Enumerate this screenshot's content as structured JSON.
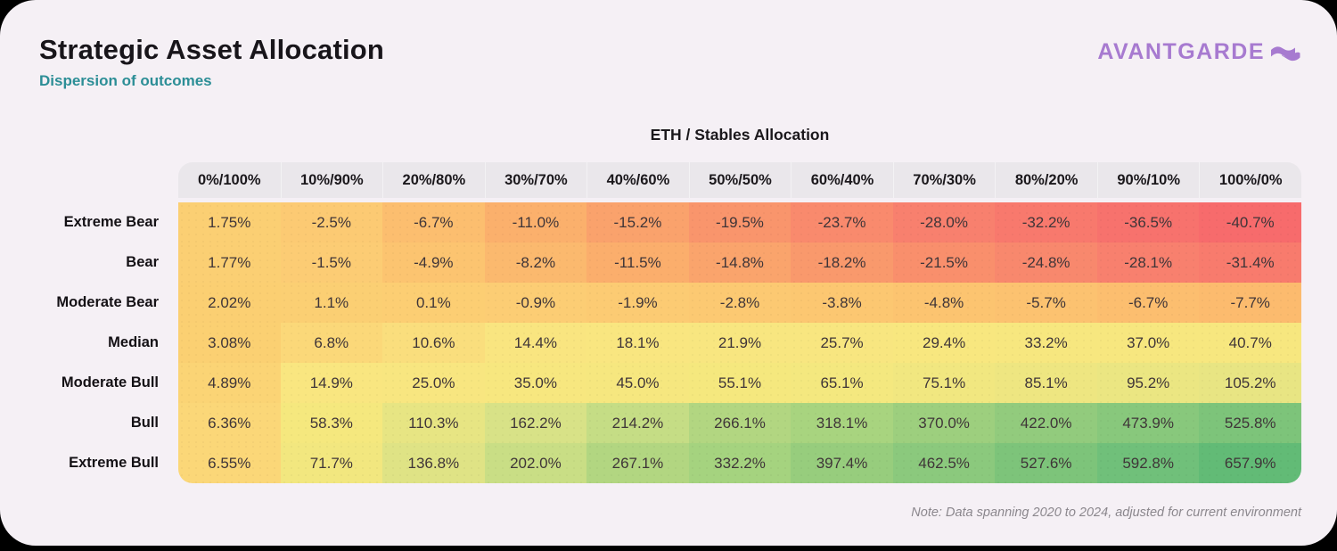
{
  "header": {
    "title": "Strategic Asset Allocation",
    "subtitle": "Dispersion of outcomes"
  },
  "logo": {
    "text": "AVANTGARDE",
    "color": "#a77ad0",
    "icon": "flag-squiggle-icon"
  },
  "chart_data": {
    "type": "heatmap",
    "title": "ETH / Stables Allocation",
    "columns": [
      "0%/100%",
      "10%/90%",
      "20%/80%",
      "30%/70%",
      "40%/60%",
      "50%/50%",
      "60%/40%",
      "70%/30%",
      "80%/20%",
      "90%/10%",
      "100%/0%"
    ],
    "rows": [
      {
        "label": "Extreme Bear",
        "values": [
          "1.75%",
          "-2.5%",
          "-6.7%",
          "-11.0%",
          "-15.2%",
          "-19.5%",
          "-23.7%",
          "-28.0%",
          "-32.2%",
          "-36.5%",
          "-40.7%"
        ]
      },
      {
        "label": "Bear",
        "values": [
          "1.77%",
          "-1.5%",
          "-4.9%",
          "-8.2%",
          "-11.5%",
          "-14.8%",
          "-18.2%",
          "-21.5%",
          "-24.8%",
          "-28.1%",
          "-31.4%"
        ]
      },
      {
        "label": "Moderate Bear",
        "values": [
          "2.02%",
          "1.1%",
          "0.1%",
          "-0.9%",
          "-1.9%",
          "-2.8%",
          "-3.8%",
          "-4.8%",
          "-5.7%",
          "-6.7%",
          "-7.7%"
        ]
      },
      {
        "label": "Median",
        "values": [
          "3.08%",
          "6.8%",
          "10.6%",
          "14.4%",
          "18.1%",
          "21.9%",
          "25.7%",
          "29.4%",
          "33.2%",
          "37.0%",
          "40.7%"
        ]
      },
      {
        "label": "Moderate Bull",
        "values": [
          "4.89%",
          "14.9%",
          "25.0%",
          "35.0%",
          "45.0%",
          "55.1%",
          "65.1%",
          "75.1%",
          "85.1%",
          "95.2%",
          "105.2%"
        ]
      },
      {
        "label": "Bull",
        "values": [
          "6.36%",
          "58.3%",
          "110.3%",
          "162.2%",
          "214.2%",
          "266.1%",
          "318.1%",
          "370.0%",
          "422.0%",
          "473.9%",
          "525.8%"
        ]
      },
      {
        "label": "Extreme Bull",
        "values": [
          "6.55%",
          "71.7%",
          "136.8%",
          "202.0%",
          "267.1%",
          "332.2%",
          "397.4%",
          "462.5%",
          "527.6%",
          "592.8%",
          "657.9%"
        ]
      }
    ],
    "color_scale": {
      "stops": [
        [
          -41,
          "#f76b6c"
        ],
        [
          -28,
          "#f8806e"
        ],
        [
          -20,
          "#f9936c"
        ],
        [
          -11,
          "#fbb06c"
        ],
        [
          -5,
          "#fcc470"
        ],
        [
          -1,
          "#fccd74"
        ],
        [
          3,
          "#fbd072"
        ],
        [
          8,
          "#fbda7b"
        ],
        [
          15,
          "#f9e680"
        ],
        [
          60,
          "#f5e87e"
        ],
        [
          110,
          "#e7e583"
        ],
        [
          162,
          "#d8e287"
        ],
        [
          214,
          "#c5dd85"
        ],
        [
          266,
          "#b2d681"
        ],
        [
          332,
          "#a5d37f"
        ],
        [
          397,
          "#97cd7d"
        ],
        [
          462,
          "#8bc97d"
        ],
        [
          528,
          "#7dc47a"
        ],
        [
          593,
          "#70c07a"
        ],
        [
          658,
          "#62bb76"
        ]
      ],
      "legend": "red = negative outcomes, yellow = near zero, green = positive outcomes"
    },
    "header_bg": "#eae7eb",
    "card_bg": "#f5f0f5",
    "title_color": "#18151a",
    "subtitle_color": "#2c8e96",
    "note_color": "#8b878d"
  },
  "footer": {
    "note": "Note: Data spanning 2020 to 2024, adjusted for current environment"
  }
}
